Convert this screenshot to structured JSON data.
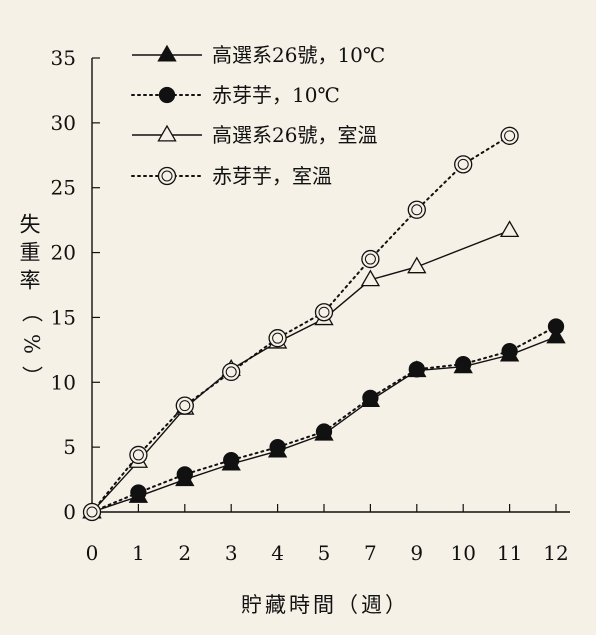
{
  "chart_data": {
    "type": "line",
    "title": "",
    "xlabel": "貯藏時間（週）",
    "ylabel": "失重率（%）",
    "x_tick_labels": [
      "0",
      "1",
      "2",
      "3",
      "4",
      "5",
      "7",
      "9",
      "10",
      "11",
      "12"
    ],
    "y_ticks": [
      "0",
      "5",
      "10",
      "15",
      "20",
      "25",
      "30",
      "35"
    ],
    "ylim": [
      0,
      35
    ],
    "grid": false,
    "legend_position": "top-left",
    "series": [
      {
        "name": "高選系26號，10℃",
        "marker": "triangle-filled",
        "line": "solid",
        "x": [
          "0",
          "1",
          "2",
          "3",
          "4",
          "5",
          "7",
          "9",
          "10",
          "11",
          "12"
        ],
        "values": [
          0,
          1.2,
          2.5,
          3.7,
          4.7,
          6.0,
          8.6,
          10.9,
          11.2,
          12.1,
          13.5
        ]
      },
      {
        "name": "赤芽芋，10℃",
        "marker": "circle-filled",
        "line": "dotted",
        "x": [
          "0",
          "1",
          "2",
          "3",
          "4",
          "5",
          "7",
          "9",
          "10",
          "11",
          "12"
        ],
        "values": [
          0,
          1.5,
          2.9,
          4.0,
          5.0,
          6.2,
          8.8,
          11.0,
          11.4,
          12.4,
          14.3
        ]
      },
      {
        "name": "高選系26號，室溫",
        "marker": "triangle-open",
        "line": "solid",
        "x": [
          "0",
          "1",
          "2",
          "3",
          "4",
          "5",
          "7",
          "9",
          "11"
        ],
        "values": [
          0,
          3.9,
          8.0,
          11.0,
          13.1,
          14.9,
          17.9,
          18.9,
          21.7
        ]
      },
      {
        "name": "赤芽芋，室溫",
        "marker": "circle-open",
        "line": "dotted",
        "x": [
          "0",
          "1",
          "2",
          "3",
          "4",
          "5",
          "7",
          "9",
          "10",
          "11"
        ],
        "values": [
          0,
          4.4,
          8.2,
          10.8,
          13.4,
          15.4,
          19.5,
          23.3,
          26.8,
          29.0
        ]
      }
    ]
  },
  "colors": {
    "ink": "#111111",
    "paper": "#f6f1e7"
  }
}
